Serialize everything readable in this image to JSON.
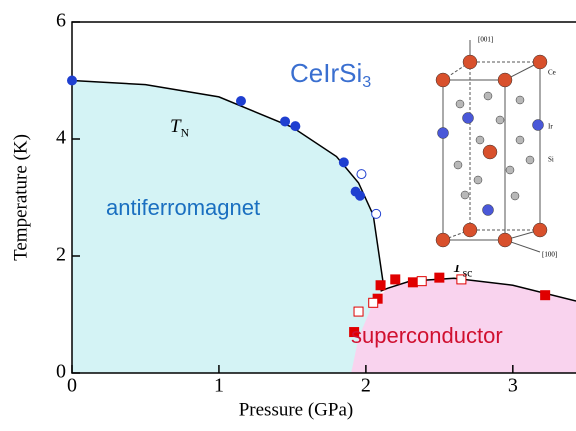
{
  "chart_data": {
    "type": "scatter",
    "xlabel": "Pressure (GPa)",
    "ylabel": "Temperature (K)",
    "xlim": [
      0,
      3.43
    ],
    "ylim": [
      0,
      6
    ],
    "xticks": [
      0,
      1,
      2,
      3
    ],
    "yticks": [
      0,
      2,
      4,
      6
    ],
    "compound": {
      "base": "CeIrSi",
      "sub": "3"
    },
    "tn_label": {
      "base": "T",
      "sub": "N"
    },
    "tsc_label": {
      "base": "T",
      "sub": "sc"
    },
    "afm_label": "antiferromagnet",
    "sc_label": "superconductor",
    "inset_labels": {
      "c_axis": "[001]",
      "a_axis": "[100]",
      "ce": "Ce",
      "ir": "Ir",
      "si": "Si"
    },
    "regions": [
      {
        "color": "#d4f3f5",
        "x": [
          0,
          0.5,
          1,
          1.5,
          1.8,
          1.95,
          2.05,
          2.12,
          1.9
        ],
        "values": [
          5.0,
          4.93,
          4.72,
          4.2,
          3.7,
          3.25,
          2.7,
          1.5,
          0
        ]
      },
      {
        "color": "#f9d3ee",
        "x": [
          1.9,
          1.95,
          2.05,
          2.15,
          2.3,
          2.6,
          3.0,
          3.43
        ],
        "values": [
          0,
          0.6,
          1.2,
          1.45,
          1.57,
          1.62,
          1.5,
          1.23
        ]
      }
    ],
    "curves": [
      {
        "color": "#000000",
        "x": [
          0,
          0.5,
          1,
          1.5,
          1.8,
          1.95,
          2.05,
          2.12
        ],
        "values": [
          5.0,
          4.93,
          4.72,
          4.2,
          3.7,
          3.25,
          2.7,
          1.5
        ]
      },
      {
        "color": "#000000",
        "x": [
          2.1,
          2.15,
          2.3,
          2.6,
          3.0,
          3.43
        ],
        "values": [
          1.4,
          1.45,
          1.57,
          1.62,
          1.5,
          1.23
        ]
      }
    ],
    "series": [
      {
        "color": "#1f3fd0",
        "marker": "circle",
        "filled": true,
        "x": [
          0,
          1.15,
          1.45,
          1.52,
          1.85,
          1.93,
          1.96
        ],
        "values": [
          5.0,
          4.65,
          4.3,
          4.22,
          3.6,
          3.1,
          3.03
        ]
      },
      {
        "color": "#1f3fd0",
        "marker": "circle",
        "filled": false,
        "x": [
          1.97,
          2.07
        ],
        "values": [
          3.4,
          2.72
        ]
      },
      {
        "color": "#e00000",
        "marker": "square",
        "filled": true,
        "x": [
          1.92,
          2.08,
          2.1,
          2.2,
          2.32,
          2.5,
          3.22
        ],
        "values": [
          0.7,
          1.27,
          1.5,
          1.6,
          1.55,
          1.63,
          1.33
        ]
      },
      {
        "color": "#e00000",
        "marker": "square",
        "filled": false,
        "x": [
          1.95,
          2.05,
          2.38,
          2.65
        ],
        "values": [
          1.05,
          1.2,
          1.57,
          1.6
        ]
      }
    ]
  }
}
